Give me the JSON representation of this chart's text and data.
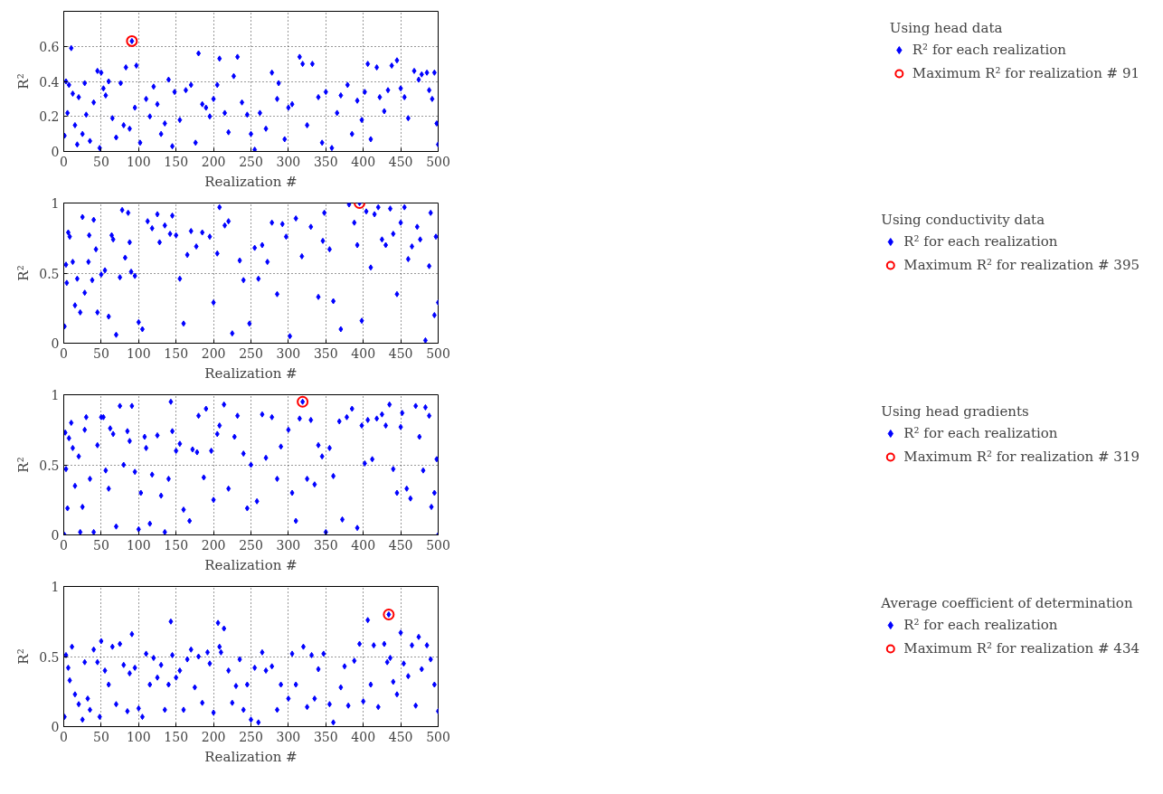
{
  "chart_data": [
    {
      "type": "scatter",
      "legend_title": "Using head data",
      "xlabel": "Realization #",
      "ylabel": "R²",
      "xlim": [
        0,
        500
      ],
      "xticks": [
        0,
        50,
        100,
        150,
        200,
        250,
        300,
        350,
        400,
        450,
        500
      ],
      "ylim": [
        0,
        0.8
      ],
      "yticks": [
        0,
        0.2,
        0.4,
        0.6
      ],
      "grid": true,
      "legend": "right",
      "series": [
        {
          "name": "R² for each realization",
          "marker": "diamond",
          "color": "#0000ff",
          "x": [
            1,
            3,
            5,
            7,
            10,
            12,
            15,
            18,
            20,
            25,
            28,
            30,
            35,
            40,
            45,
            48,
            50,
            53,
            56,
            60,
            65,
            70,
            76,
            80,
            83,
            88,
            91,
            95,
            97,
            102,
            110,
            115,
            120,
            125,
            130,
            135,
            140,
            145,
            148,
            155,
            163,
            170,
            176,
            180,
            185,
            190,
            195,
            200,
            205,
            208,
            215,
            220,
            227,
            232,
            238,
            245,
            250,
            255,
            262,
            270,
            278,
            285,
            287,
            295,
            300,
            305,
            315,
            319,
            325,
            332,
            340,
            345,
            350,
            358,
            365,
            370,
            379,
            385,
            392,
            398,
            402,
            406,
            410,
            418,
            422,
            428,
            433,
            438,
            445,
            450,
            455,
            460,
            468,
            474,
            478,
            485,
            488,
            492,
            495,
            498,
            500
          ],
          "values": [
            0.09,
            0.4,
            0.22,
            0.38,
            0.59,
            0.33,
            0.15,
            0.04,
            0.31,
            0.1,
            0.39,
            0.21,
            0.06,
            0.28,
            0.46,
            0.02,
            0.45,
            0.36,
            0.32,
            0.4,
            0.19,
            0.08,
            0.39,
            0.15,
            0.48,
            0.13,
            0.63,
            0.25,
            0.49,
            0.05,
            0.3,
            0.2,
            0.37,
            0.27,
            0.1,
            0.16,
            0.41,
            0.03,
            0.34,
            0.18,
            0.35,
            0.38,
            0.05,
            0.56,
            0.27,
            0.25,
            0.2,
            0.3,
            0.38,
            0.53,
            0.22,
            0.11,
            0.43,
            0.54,
            0.28,
            0.21,
            0.1,
            0.01,
            0.22,
            0.13,
            0.45,
            0.3,
            0.39,
            0.07,
            0.25,
            0.27,
            0.54,
            0.5,
            0.15,
            0.5,
            0.31,
            0.05,
            0.34,
            0.02,
            0.22,
            0.32,
            0.38,
            0.1,
            0.29,
            0.18,
            0.34,
            0.5,
            0.07,
            0.48,
            0.31,
            0.23,
            0.35,
            0.49,
            0.52,
            0.36,
            0.31,
            0.19,
            0.46,
            0.41,
            0.44,
            0.45,
            0.35,
            0.3,
            0.45,
            0.16,
            0.04
          ]
        },
        {
          "name": "Maximum R² for realization # 91",
          "marker": "circle",
          "color": "#ff0000",
          "x": [
            91
          ],
          "values": [
            0.63
          ]
        }
      ]
    },
    {
      "type": "scatter",
      "legend_title": "Using conductivity data",
      "xlabel": "Realization #",
      "ylabel": "R²",
      "xlim": [
        0,
        500
      ],
      "xticks": [
        0,
        50,
        100,
        150,
        200,
        250,
        300,
        350,
        400,
        450,
        500
      ],
      "ylim": [
        0,
        1
      ],
      "yticks": [
        0,
        0.5,
        1
      ],
      "grid": true,
      "legend": "right",
      "series": [
        {
          "name": "R² for each realization",
          "marker": "diamond",
          "color": "#0000ff",
          "x": [
            1,
            3,
            4,
            6,
            8,
            12,
            15,
            18,
            22,
            25,
            28,
            33,
            34,
            38,
            40,
            43,
            45,
            50,
            55,
            60,
            64,
            66,
            70,
            75,
            78,
            82,
            86,
            88,
            90,
            95,
            100,
            105,
            112,
            118,
            125,
            128,
            135,
            142,
            145,
            150,
            155,
            160,
            165,
            170,
            177,
            185,
            195,
            200,
            205,
            208,
            215,
            220,
            225,
            235,
            240,
            248,
            255,
            260,
            265,
            272,
            278,
            285,
            292,
            297,
            302,
            310,
            318,
            330,
            340,
            346,
            348,
            355,
            360,
            370,
            381,
            388,
            392,
            395,
            398,
            404,
            410,
            415,
            420,
            425,
            430,
            436,
            440,
            445,
            450,
            455,
            460,
            465,
            472,
            476,
            483,
            488,
            490,
            495,
            497,
            500
          ],
          "values": [
            0.12,
            0.56,
            0.43,
            0.79,
            0.76,
            0.58,
            0.27,
            0.46,
            0.22,
            0.9,
            0.36,
            0.58,
            0.77,
            0.45,
            0.88,
            0.67,
            0.22,
            0.49,
            0.52,
            0.19,
            0.77,
            0.74,
            0.06,
            0.47,
            0.95,
            0.61,
            0.93,
            0.72,
            0.51,
            0.48,
            0.15,
            0.1,
            0.87,
            0.82,
            0.92,
            0.72,
            0.84,
            0.78,
            0.91,
            0.77,
            0.46,
            0.14,
            0.63,
            0.8,
            0.69,
            0.79,
            0.76,
            0.29,
            0.64,
            0.97,
            0.84,
            0.87,
            0.07,
            0.59,
            0.45,
            0.14,
            0.68,
            0.46,
            0.7,
            0.58,
            0.86,
            0.35,
            0.85,
            0.76,
            0.05,
            0.89,
            0.62,
            0.83,
            0.33,
            0.73,
            0.93,
            0.67,
            0.3,
            0.1,
            0.99,
            0.86,
            0.7,
            1.0,
            0.16,
            0.94,
            0.54,
            0.92,
            0.97,
            0.74,
            0.7,
            0.96,
            0.78,
            0.35,
            0.86,
            0.97,
            0.6,
            0.69,
            0.83,
            0.74,
            0.02,
            0.55,
            0.93,
            0.2,
            0.76,
            0.29
          ]
        },
        {
          "name": "Maximum R² for realization # 395",
          "marker": "circle",
          "color": "#ff0000",
          "x": [
            395
          ],
          "values": [
            1.0
          ]
        }
      ]
    },
    {
      "type": "scatter",
      "legend_title": "Using head gradients",
      "xlabel": "Realization #",
      "ylabel": "R²",
      "xlim": [
        0,
        500
      ],
      "xticks": [
        0,
        50,
        100,
        150,
        200,
        250,
        300,
        350,
        400,
        450,
        500
      ],
      "ylim": [
        0,
        1
      ],
      "yticks": [
        0,
        0.5,
        1
      ],
      "grid": true,
      "legend": "right",
      "series": [
        {
          "name": "R² for each realization",
          "marker": "diamond",
          "color": "#0000ff",
          "x": [
            1,
            2,
            3,
            5,
            7,
            10,
            12,
            15,
            20,
            22,
            25,
            28,
            30,
            35,
            40,
            45,
            50,
            53,
            56,
            60,
            62,
            66,
            70,
            75,
            80,
            85,
            88,
            91,
            95,
            100,
            103,
            108,
            110,
            115,
            118,
            125,
            130,
            135,
            140,
            143,
            145,
            150,
            155,
            160,
            168,
            172,
            178,
            180,
            187,
            190,
            197,
            200,
            205,
            208,
            214,
            220,
            228,
            232,
            240,
            245,
            250,
            258,
            265,
            270,
            278,
            285,
            290,
            300,
            305,
            310,
            315,
            319,
            325,
            330,
            335,
            340,
            345,
            350,
            355,
            360,
            368,
            372,
            378,
            385,
            392,
            398,
            402,
            406,
            412,
            418,
            425,
            430,
            435,
            440,
            445,
            450,
            452,
            458,
            463,
            470,
            475,
            480,
            483,
            488,
            491,
            495,
            498,
            500
          ],
          "values": [
            0.0,
            0.73,
            0.47,
            0.19,
            0.69,
            0.8,
            0.62,
            0.35,
            0.56,
            0.02,
            0.2,
            0.75,
            0.84,
            0.4,
            0.02,
            0.64,
            0.84,
            0.84,
            0.46,
            0.33,
            0.76,
            0.72,
            0.06,
            0.92,
            0.5,
            0.74,
            0.67,
            0.92,
            0.45,
            0.04,
            0.3,
            0.7,
            0.62,
            0.08,
            0.43,
            0.71,
            0.28,
            0.02,
            0.4,
            0.95,
            0.74,
            0.6,
            0.65,
            0.18,
            0.1,
            0.61,
            0.59,
            0.85,
            0.41,
            0.9,
            0.6,
            0.25,
            0.72,
            0.78,
            0.93,
            0.33,
            0.7,
            0.85,
            0.58,
            0.19,
            0.5,
            0.24,
            0.86,
            0.55,
            0.84,
            0.4,
            0.63,
            0.75,
            0.3,
            0.1,
            0.83,
            0.95,
            0.4,
            0.82,
            0.36,
            0.64,
            0.56,
            0.02,
            0.62,
            0.42,
            0.81,
            0.11,
            0.84,
            0.9,
            0.05,
            0.78,
            0.51,
            0.82,
            0.54,
            0.83,
            0.86,
            0.78,
            0.93,
            0.47,
            0.3,
            0.77,
            0.87,
            0.33,
            0.26,
            0.92,
            0.7,
            0.46,
            0.91,
            0.85,
            0.2,
            0.3,
            0.54,
            0.0
          ]
        },
        {
          "name": "Maximum R² for realization # 319",
          "marker": "circle",
          "color": "#ff0000",
          "x": [
            319
          ],
          "values": [
            0.95
          ]
        }
      ]
    },
    {
      "type": "scatter",
      "legend_title": "Average coefficient of determination",
      "xlabel": "Realization #",
      "ylabel": "R²",
      "xlim": [
        0,
        500
      ],
      "xticks": [
        0,
        50,
        100,
        150,
        200,
        250,
        300,
        350,
        400,
        450,
        500
      ],
      "ylim": [
        0,
        1
      ],
      "yticks": [
        0,
        0.5,
        1
      ],
      "grid": true,
      "legend": "right",
      "series": [
        {
          "name": "R² for each realization",
          "marker": "diamond",
          "color": "#0000ff",
          "x": [
            1,
            3,
            6,
            8,
            11,
            15,
            20,
            25,
            28,
            32,
            35,
            40,
            45,
            48,
            50,
            55,
            60,
            65,
            70,
            75,
            80,
            85,
            88,
            91,
            95,
            100,
            105,
            110,
            115,
            120,
            125,
            130,
            135,
            140,
            143,
            145,
            150,
            155,
            160,
            165,
            170,
            175,
            180,
            185,
            192,
            195,
            200,
            206,
            208,
            210,
            214,
            220,
            225,
            230,
            235,
            240,
            245,
            250,
            255,
            260,
            265,
            270,
            278,
            285,
            290,
            300,
            305,
            310,
            320,
            325,
            331,
            335,
            340,
            347,
            355,
            360,
            370,
            375,
            380,
            388,
            395,
            400,
            406,
            410,
            414,
            420,
            428,
            432,
            434,
            436,
            440,
            445,
            450,
            454,
            460,
            465,
            470,
            474,
            478,
            485,
            490,
            495,
            500
          ],
          "values": [
            0.07,
            0.51,
            0.42,
            0.33,
            0.57,
            0.23,
            0.16,
            0.05,
            0.46,
            0.2,
            0.12,
            0.55,
            0.46,
            0.07,
            0.61,
            0.4,
            0.3,
            0.57,
            0.16,
            0.59,
            0.44,
            0.11,
            0.38,
            0.66,
            0.42,
            0.13,
            0.07,
            0.52,
            0.3,
            0.49,
            0.35,
            0.44,
            0.12,
            0.3,
            0.75,
            0.51,
            0.35,
            0.4,
            0.12,
            0.48,
            0.55,
            0.28,
            0.5,
            0.17,
            0.53,
            0.45,
            0.1,
            0.74,
            0.57,
            0.53,
            0.7,
            0.4,
            0.17,
            0.29,
            0.48,
            0.12,
            0.3,
            0.05,
            0.42,
            0.03,
            0.53,
            0.4,
            0.43,
            0.12,
            0.3,
            0.2,
            0.52,
            0.3,
            0.57,
            0.14,
            0.51,
            0.2,
            0.41,
            0.52,
            0.16,
            0.03,
            0.28,
            0.43,
            0.15,
            0.47,
            0.59,
            0.18,
            0.76,
            0.3,
            0.58,
            0.14,
            0.59,
            0.46,
            0.8,
            0.49,
            0.32,
            0.23,
            0.67,
            0.45,
            0.36,
            0.58,
            0.15,
            0.64,
            0.41,
            0.58,
            0.48,
            0.3,
            0.11
          ]
        },
        {
          "name": "Maximum R² for realization # 434",
          "marker": "circle",
          "color": "#ff0000",
          "x": [
            434
          ],
          "values": [
            0.8
          ]
        }
      ]
    }
  ]
}
